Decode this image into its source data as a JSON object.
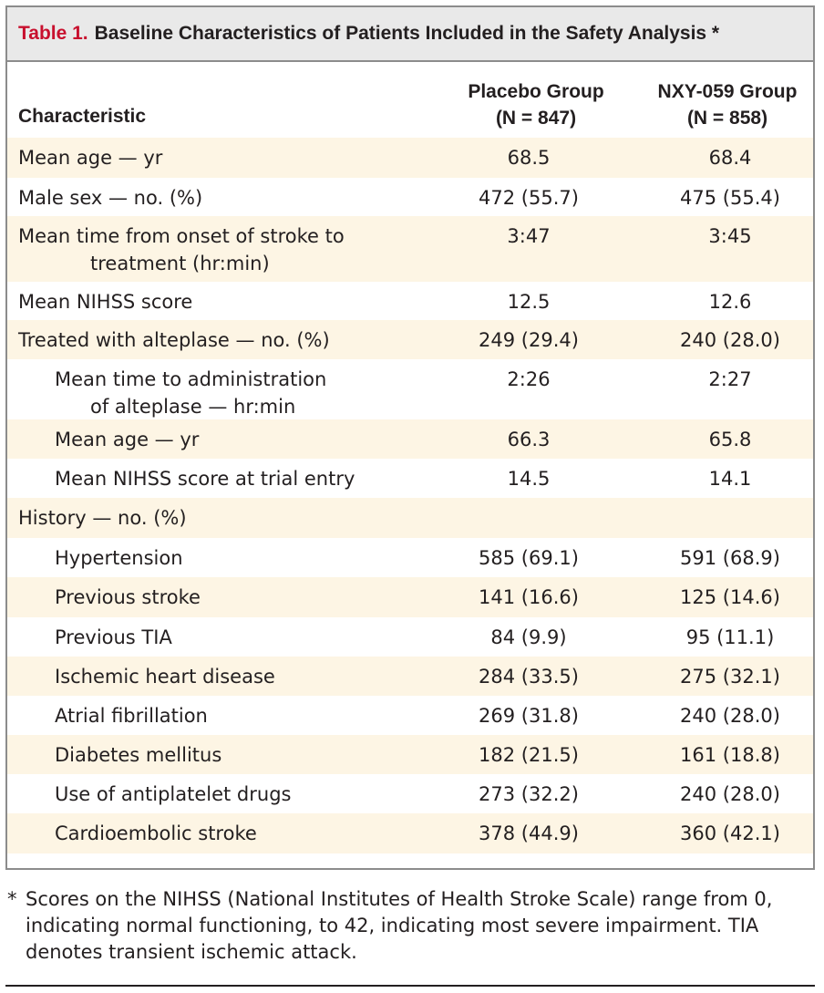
{
  "title": {
    "label": "Table 1.",
    "text": "Baseline Characteristics of Patients Included in the Safety Analysis *"
  },
  "header": {
    "characteristic": "Characteristic",
    "col1_line1": "Placebo Group",
    "col1_line2": "(N = 847)",
    "col2_line1": "NXY-059 Group",
    "col2_line2": "(N = 858)"
  },
  "rows": [
    {
      "label": "Mean age — yr",
      "label2": "",
      "placebo": "68.5",
      "nxy": "68.4"
    },
    {
      "label": "Male sex — no. (%)",
      "label2": "",
      "placebo": "472 (55.7)",
      "nxy": "475 (55.4)"
    },
    {
      "label": "Mean time from onset of stroke to",
      "label2": "treatment (hr:min)",
      "placebo": "3:47",
      "nxy": "3:45"
    },
    {
      "label": "Mean NIHSS score",
      "label2": "",
      "placebo": "12.5",
      "nxy": "12.6"
    },
    {
      "label": "Treated with alteplase —  no. (%)",
      "label2": "",
      "placebo": "249 (29.4)",
      "nxy": "240 (28.0)"
    },
    {
      "label": "Mean time to administration",
      "label2": "of alteplase — hr:min",
      "placebo": "2:26",
      "nxy": "2:27"
    },
    {
      "label": "Mean age — yr",
      "label2": "",
      "placebo": "66.3",
      "nxy": "65.8"
    },
    {
      "label": "Mean NIHSS score at trial entry",
      "label2": "",
      "placebo": "14.5",
      "nxy": "14.1"
    },
    {
      "label": "History — no. (%)",
      "label2": "",
      "placebo": "",
      "nxy": ""
    },
    {
      "label": "Hypertension",
      "label2": "",
      "placebo": "585 (69.1)",
      "nxy": "591 (68.9)"
    },
    {
      "label": "Previous stroke",
      "label2": "",
      "placebo": "141 (16.6)",
      "nxy": "125 (14.6)"
    },
    {
      "label": "Previous TIA",
      "label2": "",
      "placebo": "84 (9.9)",
      "nxy": "95 (11.1)"
    },
    {
      "label": "Ischemic heart disease",
      "label2": "",
      "placebo": "284 (33.5)",
      "nxy": "275 (32.1)"
    },
    {
      "label": "Atrial fibrillation",
      "label2": "",
      "placebo": "269 (31.8)",
      "nxy": "240 (28.0)"
    },
    {
      "label": "Diabetes mellitus",
      "label2": "",
      "placebo": "182 (21.5)",
      "nxy": "161 (18.8)"
    },
    {
      "label": "Use of antiplatelet drugs",
      "label2": "",
      "placebo": "273 (32.2)",
      "nxy": "240 (28.0)"
    },
    {
      "label": "Cardioembolic stroke",
      "label2": "",
      "placebo": "378 (44.9)",
      "nxy": "360 (42.1)"
    }
  ],
  "footnote": {
    "star": "*",
    "text": "Scores on the NIHSS (National Institutes of Health Stroke Scale) range from 0, indicating normal functioning, to 42, indicating most severe impairment. TIA denotes transient ischemic attack."
  }
}
